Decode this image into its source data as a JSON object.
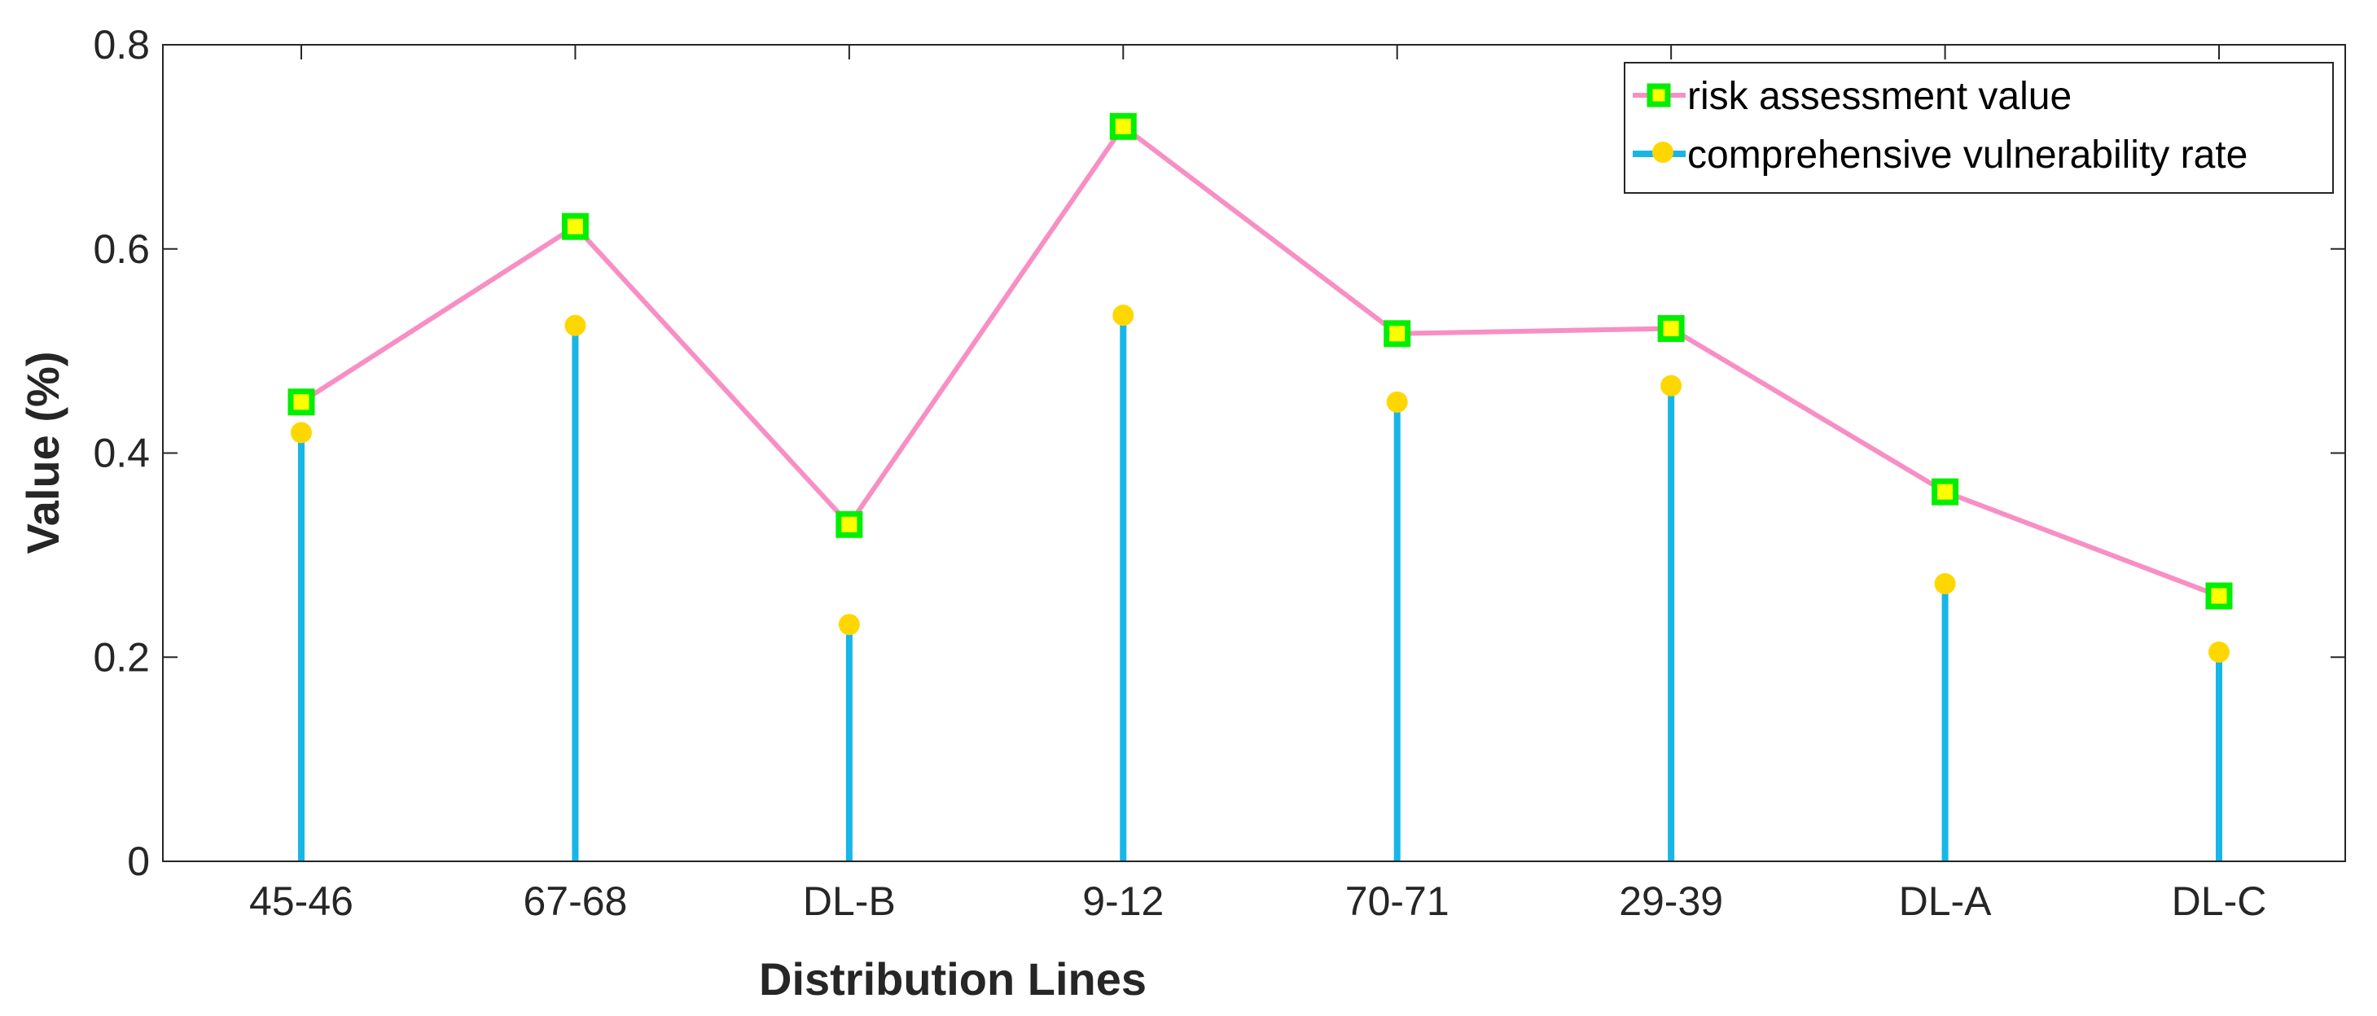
{
  "chart_data": {
    "type": "line+stem",
    "title": "",
    "xlabel": "Distribution Lines",
    "ylabel": "Value (%)",
    "categories": [
      "45-46",
      "67-68",
      "DL-B",
      "9-12",
      "70-71",
      "29-39",
      "DL-A",
      "DL-C"
    ],
    "ylim": [
      0,
      0.8
    ],
    "yticks": [
      0,
      0.2,
      0.4,
      0.6,
      0.8
    ],
    "ytick_labels": [
      "0",
      "0.2",
      "0.4",
      "0.6",
      "0.8"
    ],
    "grid": false,
    "legend_position": "top-right",
    "series": [
      {
        "name": "risk assessment value",
        "kind": "line",
        "values": [
          0.45,
          0.622,
          0.33,
          0.72,
          0.517,
          0.522,
          0.362,
          0.26
        ],
        "line_color": "#f78fc4",
        "marker": "square",
        "marker_edge_color": "#00ee00",
        "marker_face_color": "#ffff00"
      },
      {
        "name": "comprehensive vulnerability rate",
        "kind": "stem",
        "values": [
          0.42,
          0.525,
          0.232,
          0.535,
          0.45,
          0.466,
          0.272,
          0.205
        ],
        "line_color": "#17b6e6",
        "marker": "circle",
        "marker_color": "#ffd700"
      }
    ]
  }
}
